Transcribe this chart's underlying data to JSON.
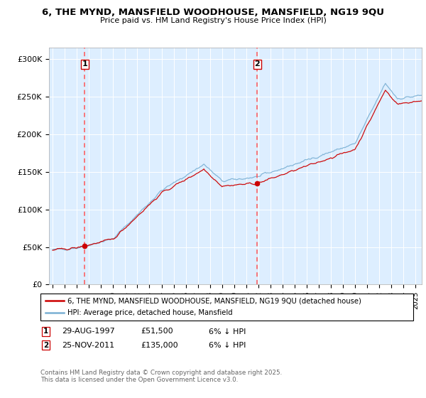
{
  "title": "6, THE MYND, MANSFIELD WOODHOUSE, MANSFIELD, NG19 9QU",
  "subtitle": "Price paid vs. HM Land Registry's House Price Index (HPI)",
  "ylim": [
    0,
    315000
  ],
  "xlim_start": 1994.7,
  "xlim_end": 2025.5,
  "transaction1": {
    "date_num": 1997.66,
    "price": 51500,
    "label": "1"
  },
  "transaction2": {
    "date_num": 2011.9,
    "price": 135000,
    "label": "2"
  },
  "ann1_date": "29-AUG-1997",
  "ann1_price": "£51,500",
  "ann1_hpi": "6% ↓ HPI",
  "ann2_date": "25-NOV-2011",
  "ann2_price": "£135,000",
  "ann2_hpi": "6% ↓ HPI",
  "legend_line1": "6, THE MYND, MANSFIELD WOODHOUSE, MANSFIELD, NG19 9QU (detached house)",
  "legend_line2": "HPI: Average price, detached house, Mansfield",
  "footer": "Contains HM Land Registry data © Crown copyright and database right 2025.\nThis data is licensed under the Open Government Licence v3.0.",
  "line_color_red": "#cc0000",
  "line_color_blue": "#7ab0d4",
  "bg_color": "#ddeeff",
  "grid_color": "#ffffff"
}
